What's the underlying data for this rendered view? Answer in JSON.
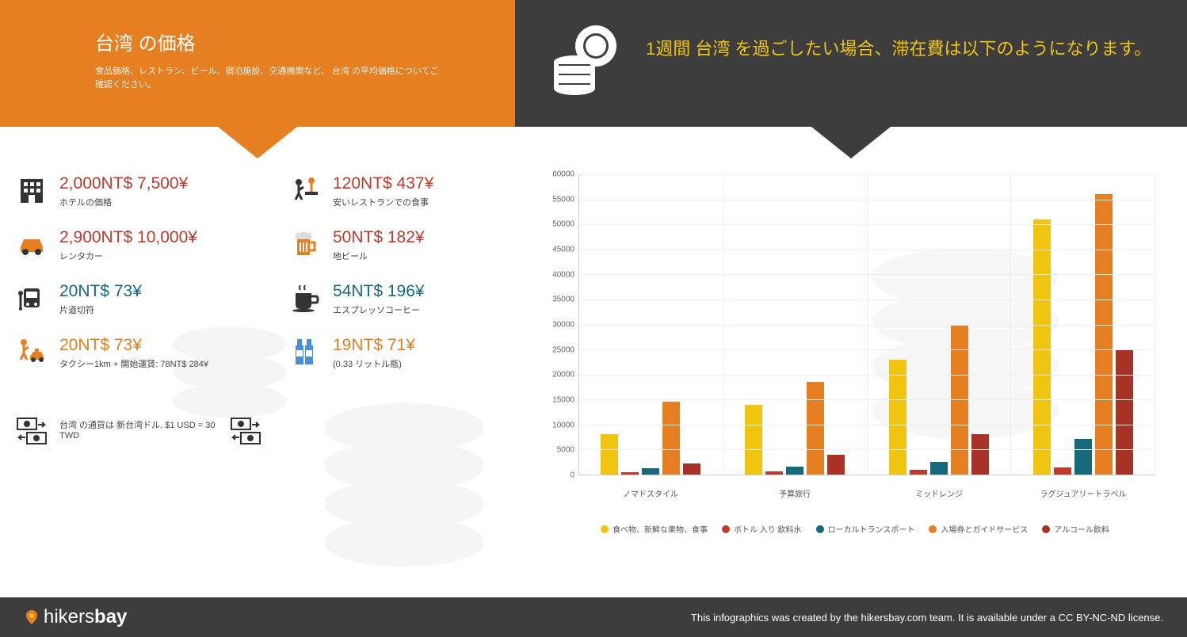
{
  "header": {
    "title": "台湾 の価格",
    "subtitle": "食品価格、レストラン、ビール、宿泊施設、交通機関など、 台湾 の平均価格についてご確認ください。",
    "right_title": "1週間 台湾 を過ごしたい場合、滞在費は以下のようになります。"
  },
  "prices": {
    "left": [
      {
        "amount": "2,000NT$ 7,500¥",
        "label": "ホテルの価格",
        "color": "c-red",
        "icon": "hotel"
      },
      {
        "amount": "2,900NT$ 10,000¥",
        "label": "レンタカー",
        "color": "c-red",
        "icon": "car"
      },
      {
        "amount": "20NT$ 73¥",
        "label": "片道切符",
        "color": "c-teal",
        "icon": "bus"
      },
      {
        "amount": "20NT$ 73¥",
        "label": "タクシー1km + 開始運賃: 78NT$ 284¥",
        "color": "c-orange",
        "icon": "taxi"
      }
    ],
    "right": [
      {
        "amount": "120NT$ 437¥",
        "label": "安いレストランでの食事",
        "color": "c-red",
        "icon": "restaurant"
      },
      {
        "amount": "50NT$ 182¥",
        "label": "地ビール",
        "color": "c-red",
        "icon": "beer"
      },
      {
        "amount": "54NT$ 196¥",
        "label": "エスプレッソコーヒー",
        "color": "c-teal",
        "icon": "coffee"
      },
      {
        "amount": "19NT$ 71¥",
        "label": "(0.33 リットル瓶)",
        "color": "c-orange",
        "icon": "bottle"
      }
    ]
  },
  "currency_note": "台湾 の通貨は 新台湾ドル. $1 USD = 30 TWD",
  "chart": {
    "type": "bar",
    "ylim": [
      0,
      60000
    ],
    "ytick_step": 5000,
    "categories": [
      "ノマドスタイル",
      "予算旅行",
      "ミッドレンジ",
      "ラグジュアリートラベル"
    ],
    "series": [
      {
        "name": "食べ物、新鮮な果物、食事",
        "color": "#f1c40f",
        "values": [
          8000,
          14000,
          23000,
          51000
        ]
      },
      {
        "name": "ボトル 入り 飲料水",
        "color": "#c0392b",
        "values": [
          400,
          700,
          900,
          1400
        ]
      },
      {
        "name": "ローカルトランスポート",
        "color": "#16697a",
        "values": [
          1200,
          1600,
          2600,
          7200
        ]
      },
      {
        "name": "入場券とガイドサービス",
        "color": "#e67e22",
        "values": [
          14500,
          18500,
          30000,
          56000
        ]
      },
      {
        "name": "アルコール飲料",
        "color": "#a93226",
        "values": [
          2200,
          4000,
          8000,
          25000
        ]
      }
    ],
    "grid_color": "#eeeeee",
    "axis_color": "#cccccc",
    "label_fontsize": 10
  },
  "footer": {
    "brand1": "hikers",
    "brand2": "bay",
    "license": "This infographics was created by the hikersbay.com team. It is available under a CC BY-NC-ND license."
  }
}
